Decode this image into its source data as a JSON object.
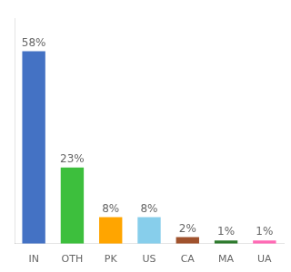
{
  "chart_data": {
    "type": "bar",
    "categories": [
      "IN",
      "OTH",
      "PK",
      "US",
      "CA",
      "MA",
      "UA"
    ],
    "values": [
      58,
      23,
      8,
      8,
      2,
      1,
      1
    ],
    "value_labels": [
      "58%",
      "23%",
      "8%",
      "8%",
      "2%",
      "1%",
      "1%"
    ],
    "colors": [
      "#4472C4",
      "#3DBF3D",
      "#FFA500",
      "#87CEEB",
      "#A0522D",
      "#2D7A2D",
      "#FF69B4"
    ],
    "ylim": [
      0,
      68
    ],
    "grid": false,
    "data_labels": true,
    "tick_labels": "x"
  }
}
